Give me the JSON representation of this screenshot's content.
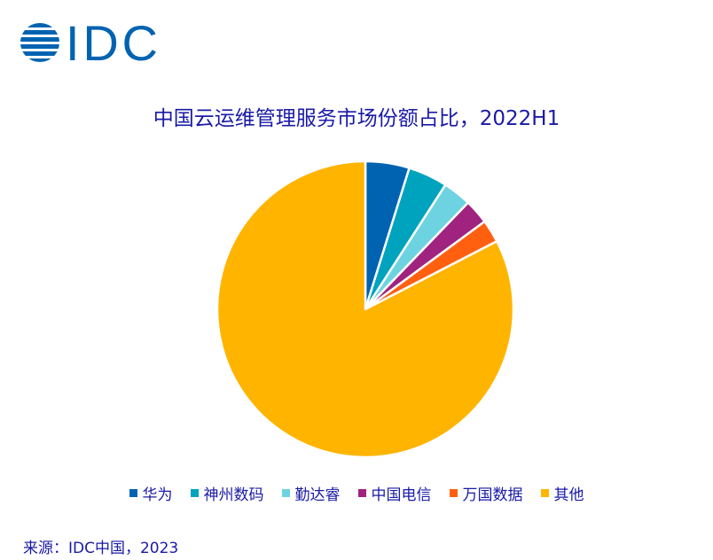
{
  "logo": {
    "text": "IDC",
    "color": "#0063b1"
  },
  "chart_data": {
    "type": "pie",
    "title": "中国云运维管理服务市场份额占比，2022H1",
    "start": "top",
    "direction": "clockwise",
    "legend_position": "bottom",
    "slices": [
      {
        "name": "华为",
        "value": 4.8,
        "color": "#0063b1"
      },
      {
        "name": "神州数码",
        "value": 4.3,
        "color": "#00a3bd"
      },
      {
        "name": "勤达睿",
        "value": 3.1,
        "color": "#6ed3e0"
      },
      {
        "name": "中国电信",
        "value": 2.7,
        "color": "#a0237f"
      },
      {
        "name": "万国数据",
        "value": 2.5,
        "color": "#ff6010"
      },
      {
        "name": "其他",
        "value": 82.6,
        "color": "#ffb400"
      }
    ]
  },
  "source": "来源：IDC中国，2023"
}
